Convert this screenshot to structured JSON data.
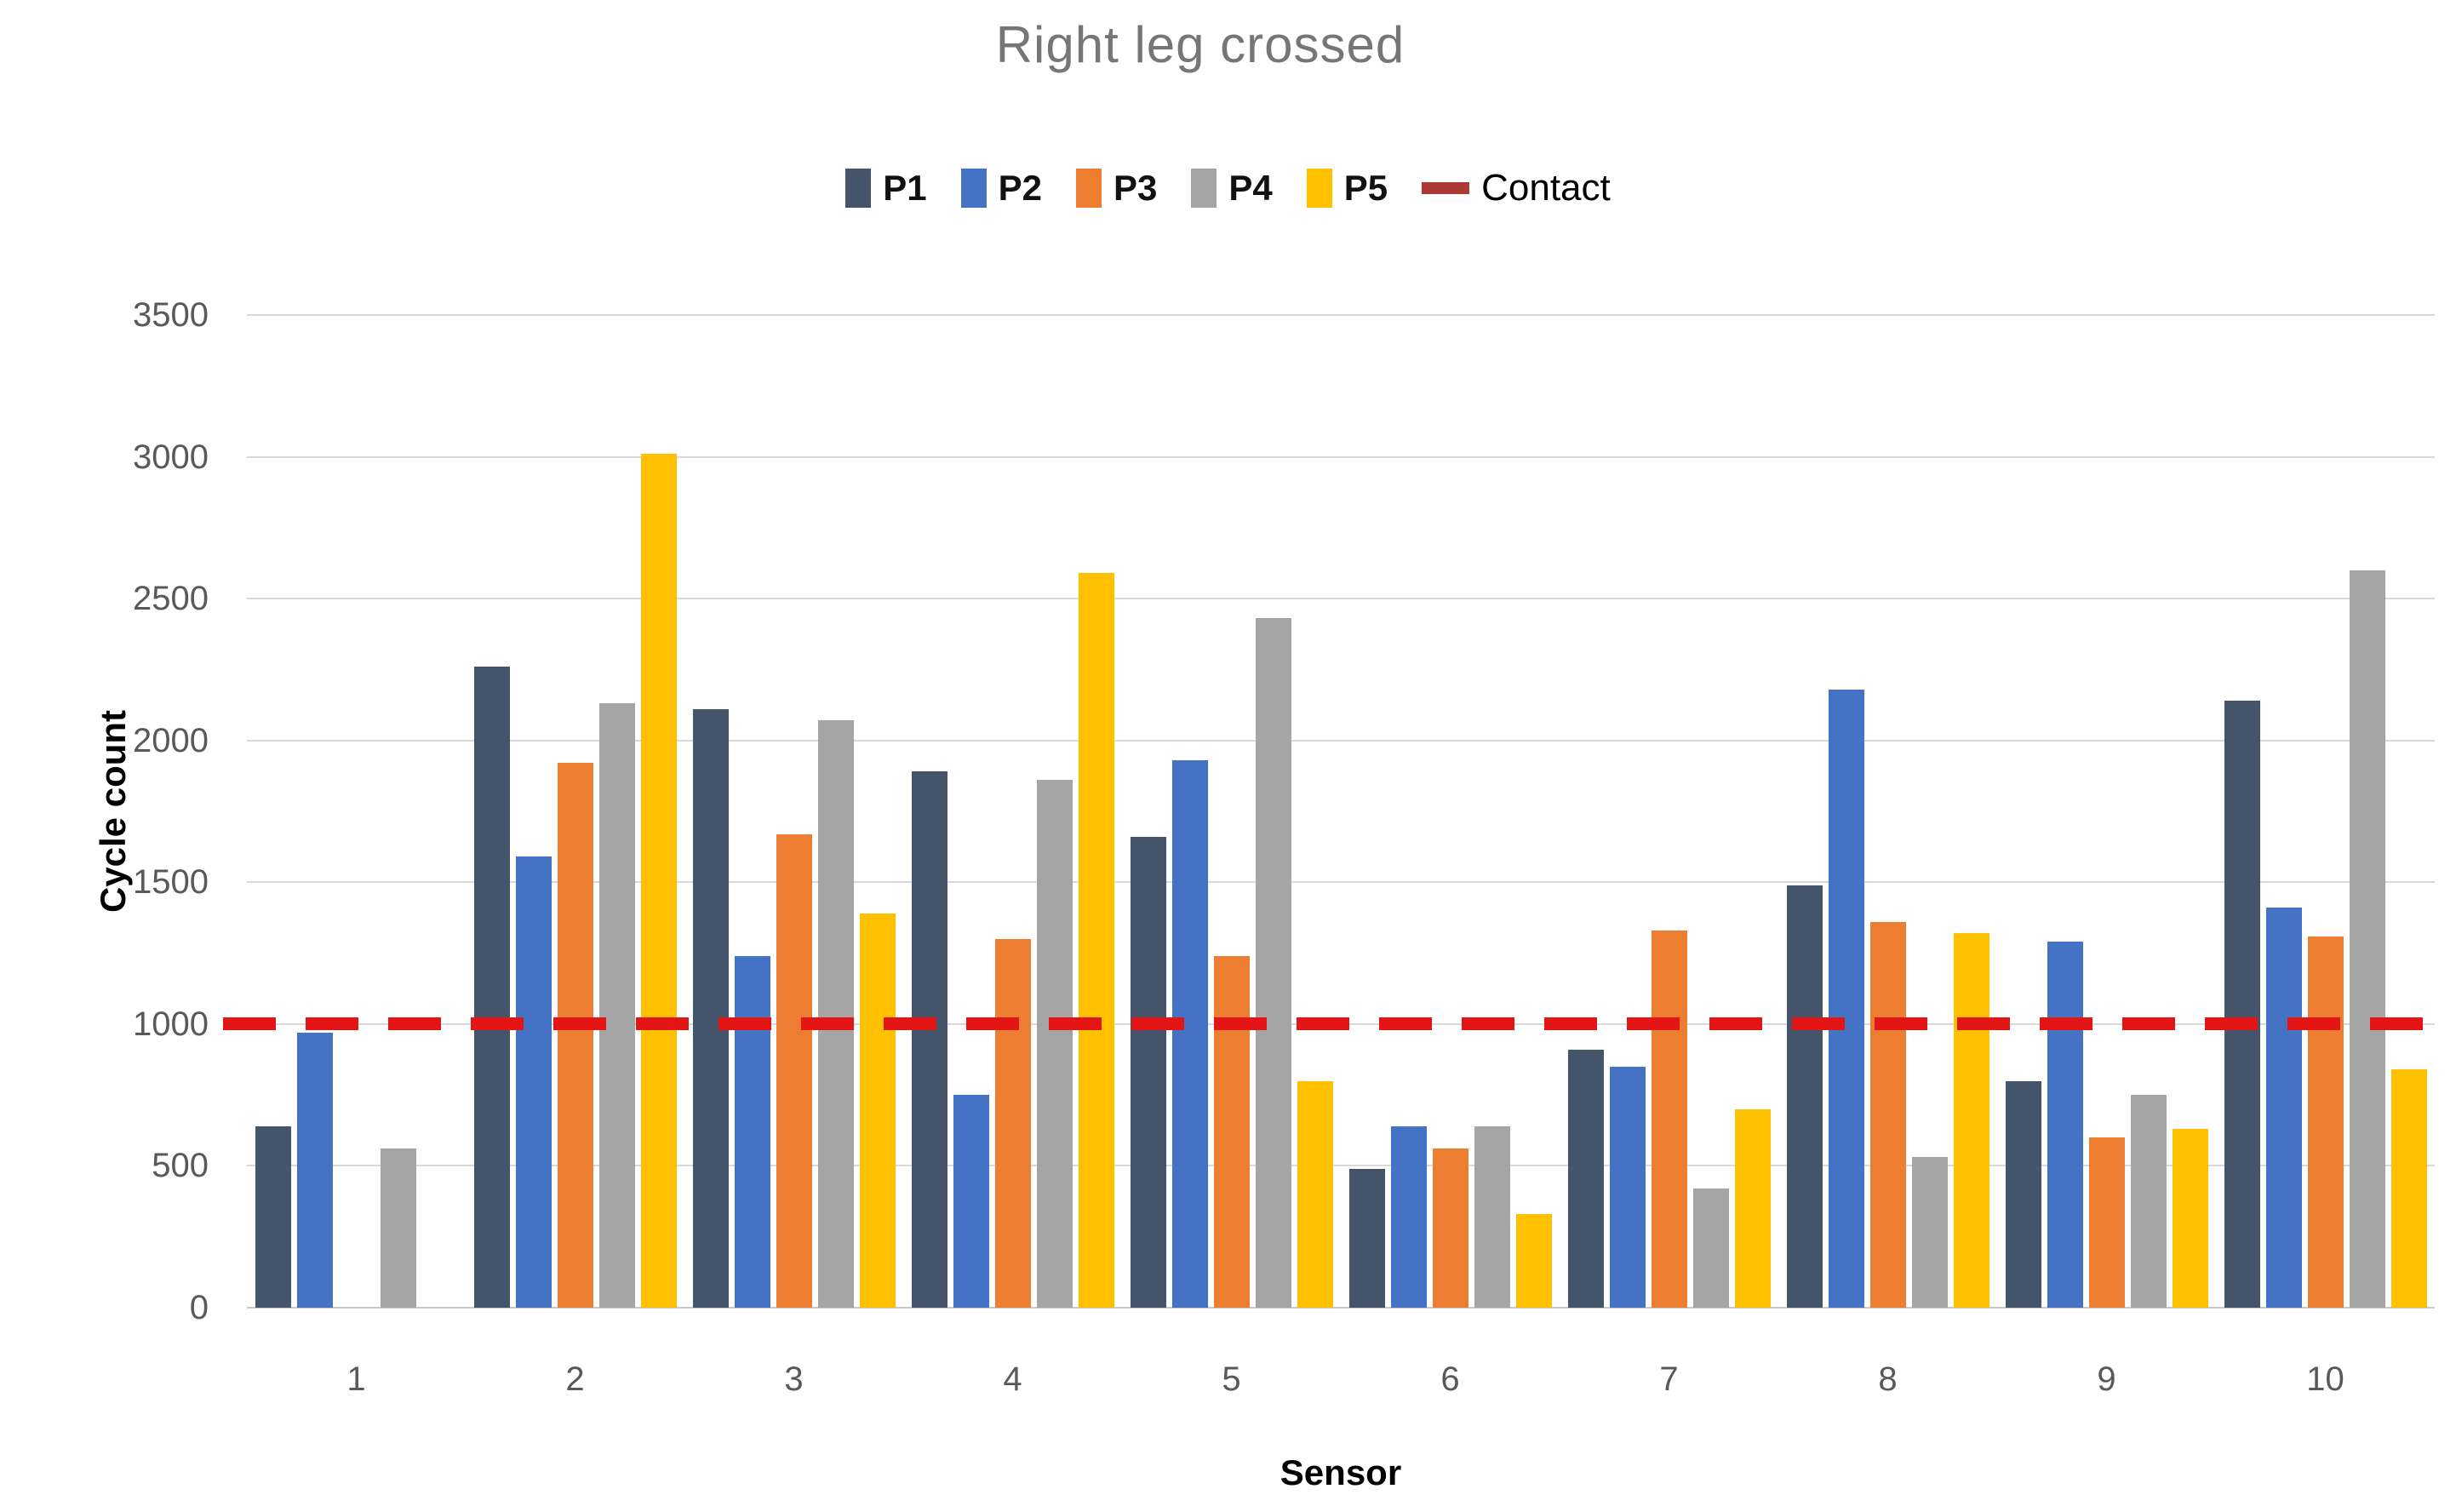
{
  "title": "Right leg crossed",
  "chart_data": {
    "type": "bar",
    "title": "Right leg crossed",
    "xlabel": "Sensor",
    "ylabel": "Cycle count",
    "ylim": [
      0,
      3500
    ],
    "ytick_step": 500,
    "yticks": [
      3500,
      3000,
      2500,
      2000,
      1500,
      1000,
      500,
      0
    ],
    "grid": true,
    "legend_position": "top",
    "categories": [
      "1",
      "2",
      "3",
      "4",
      "5",
      "6",
      "7",
      "8",
      "9",
      "10"
    ],
    "series": [
      {
        "name": "P1",
        "color": "#44546a",
        "values": [
          640,
          2260,
          2110,
          1890,
          1660,
          490,
          910,
          1490,
          800,
          2140
        ]
      },
      {
        "name": "P2",
        "color": "#4472c4",
        "values": [
          970,
          1590,
          1240,
          750,
          1930,
          640,
          850,
          2180,
          1290,
          1410
        ]
      },
      {
        "name": "P3",
        "color": "#ed7d31",
        "values": [
          0,
          1920,
          1670,
          1300,
          1240,
          560,
          1330,
          1360,
          600,
          1310
        ]
      },
      {
        "name": "P4",
        "color": "#a5a5a5",
        "values": [
          560,
          2130,
          2070,
          1860,
          2430,
          640,
          420,
          530,
          750,
          2600
        ]
      },
      {
        "name": "P5",
        "color": "#ffc000",
        "values": [
          0,
          3010,
          1390,
          2590,
          800,
          330,
          700,
          1320,
          630,
          840
        ]
      }
    ],
    "contact_line": {
      "label": "Contact",
      "value": 1000,
      "color": "#e31515",
      "legend_color": "#ab3a34"
    }
  }
}
